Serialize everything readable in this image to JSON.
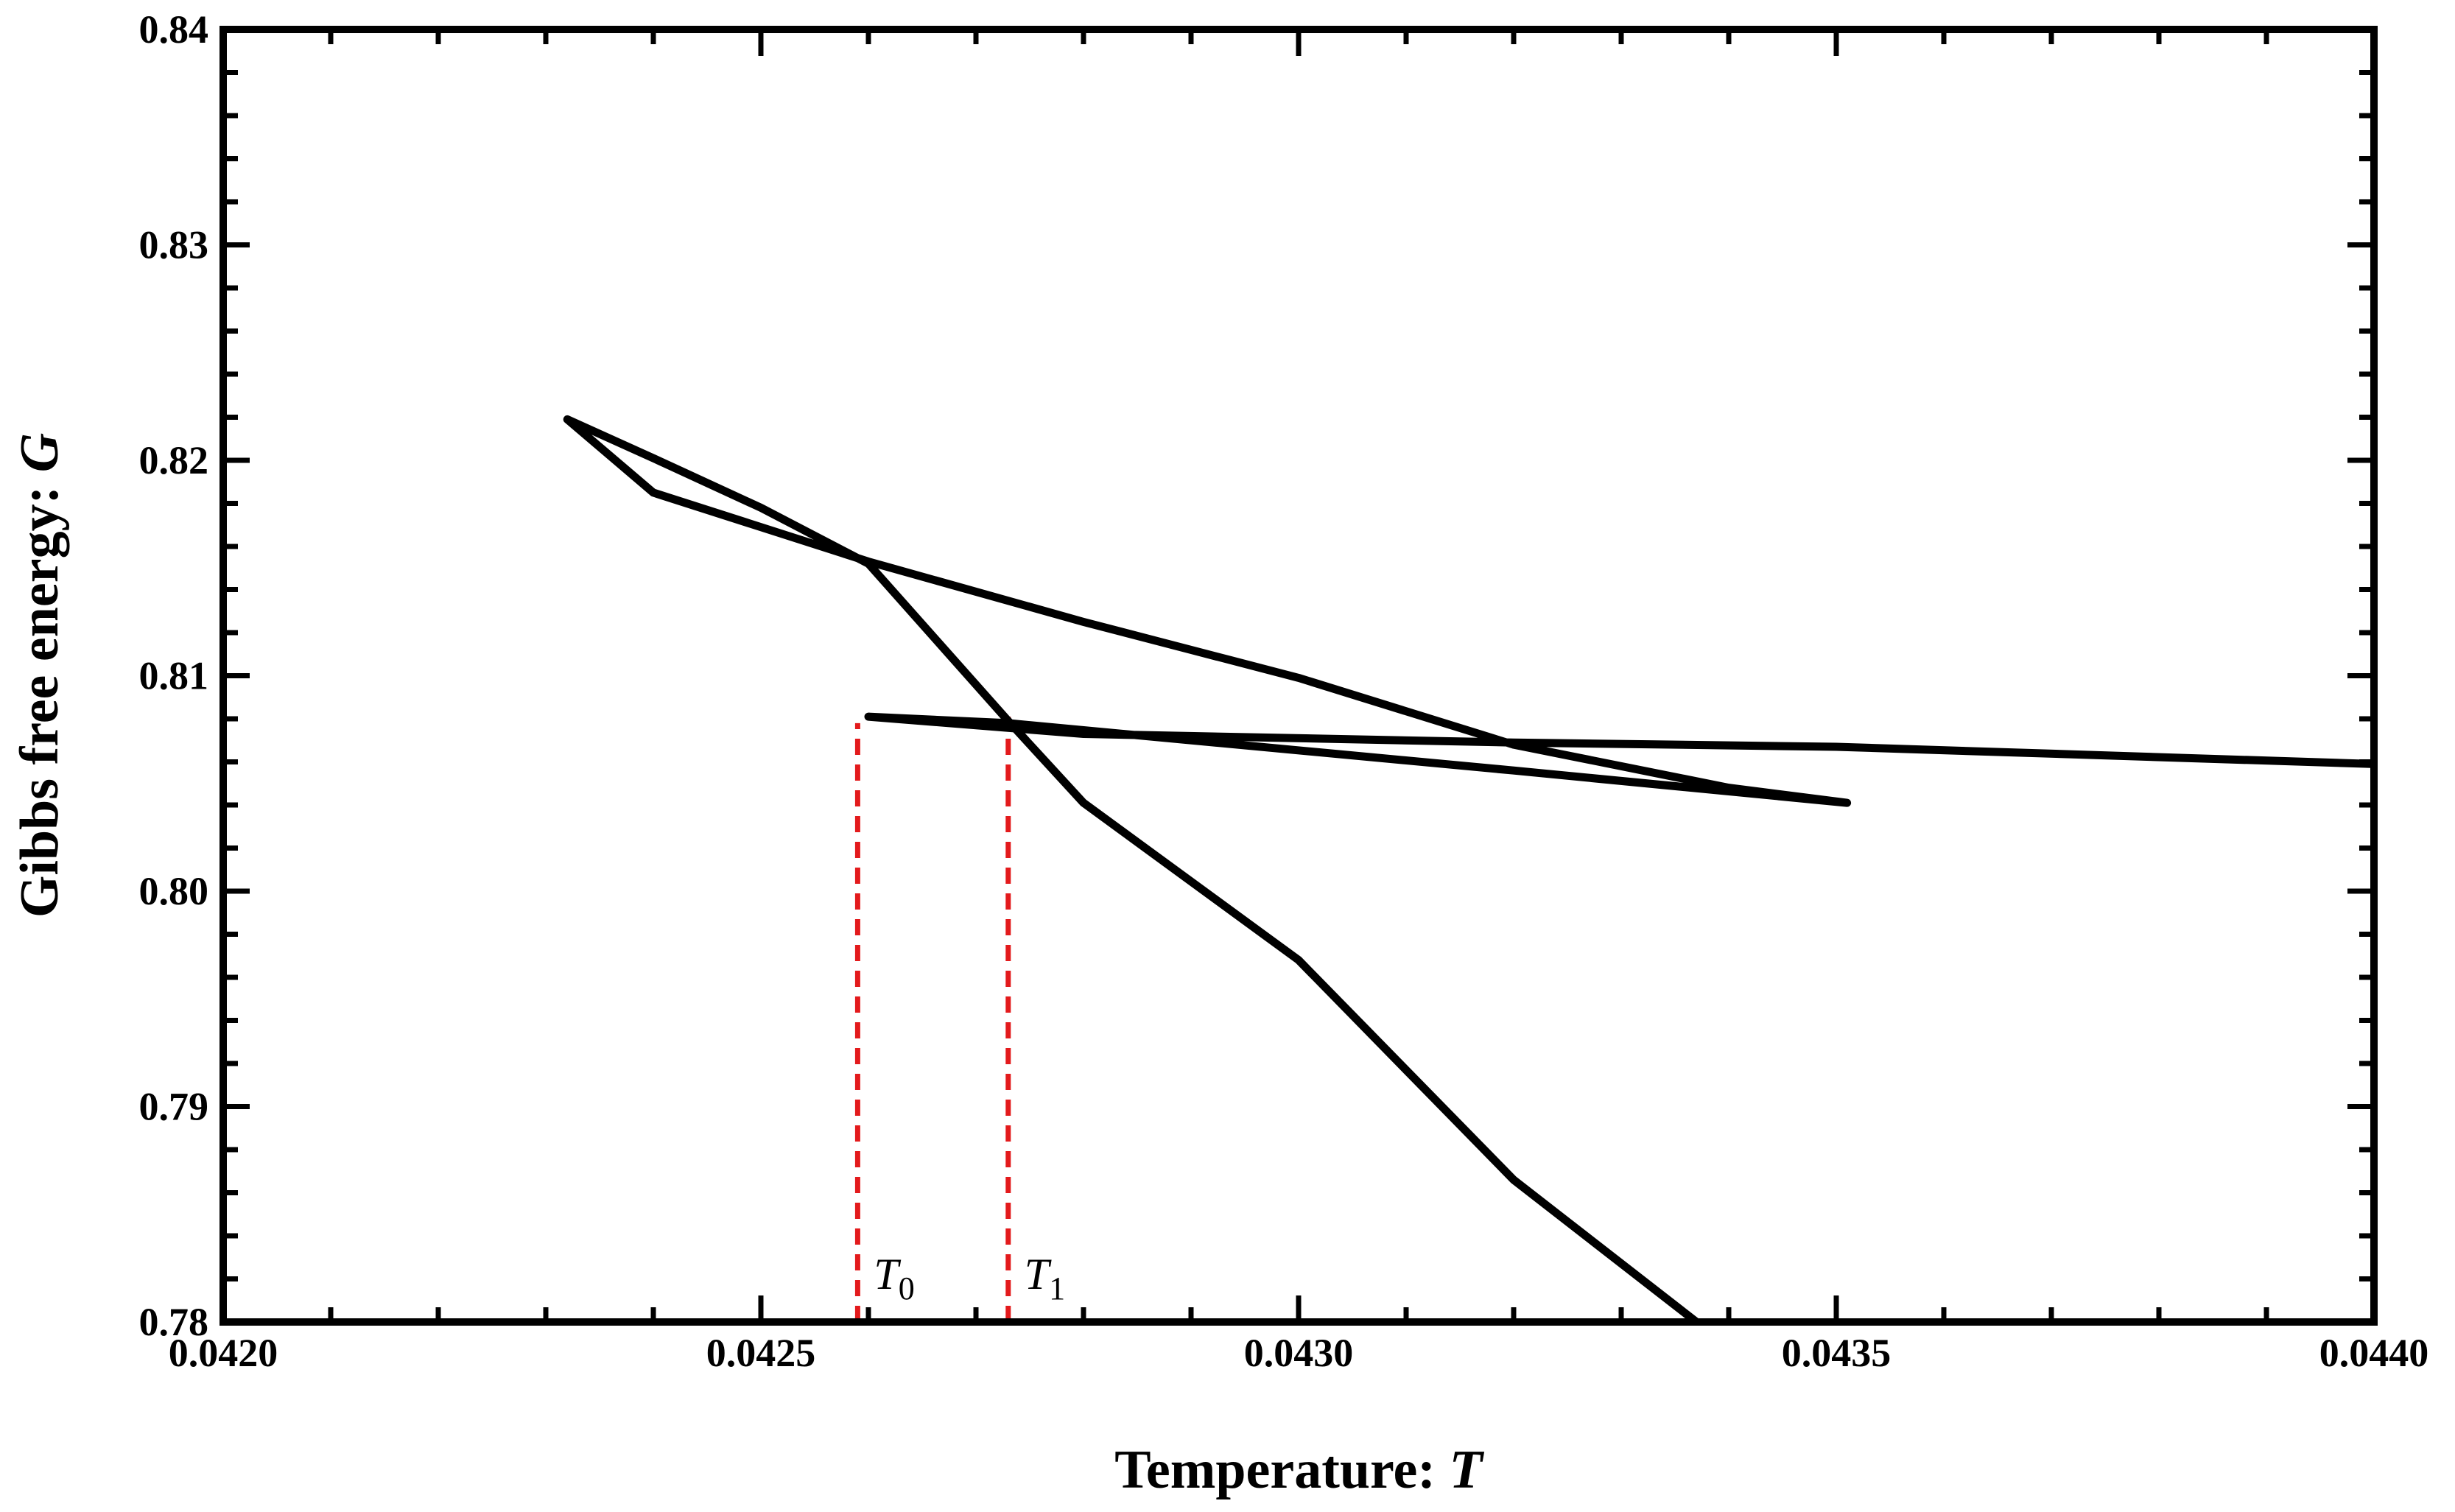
{
  "chart_data": {
    "type": "line",
    "xlabel_text": "Temperature: ",
    "xlabel_var": "T",
    "ylabel_text": "Gibbs free energy: ",
    "ylabel_var": "G",
    "xlim": [
      0.042,
      0.044
    ],
    "ylim": [
      0.78,
      0.84
    ],
    "x_ticks": [
      0.042,
      0.0425,
      0.043,
      0.0435,
      0.044
    ],
    "x_tick_labels": [
      "0.0420",
      "0.0425",
      "0.0430",
      "0.0435",
      "0.0440"
    ],
    "y_ticks": [
      0.78,
      0.79,
      0.8,
      0.81,
      0.82,
      0.83,
      0.84
    ],
    "y_tick_labels": [
      "0.78",
      "0.79",
      "0.80",
      "0.81",
      "0.82",
      "0.83",
      "0.84"
    ],
    "grid": false,
    "series": [
      {
        "color": "#000000",
        "points": [
          [
            0.04441,
            0.805
          ],
          [
            0.044,
            0.8059
          ],
          [
            0.0435,
            0.8067
          ],
          [
            0.0432,
            0.8069
          ],
          [
            0.0428,
            0.8073
          ],
          [
            0.0426,
            0.8081
          ],
          [
            0.04273,
            0.8078
          ],
          [
            0.0432,
            0.8056
          ],
          [
            0.04351,
            0.8041
          ],
          [
            0.0434,
            0.8048
          ],
          [
            0.0432,
            0.8068
          ],
          [
            0.043,
            0.8099
          ],
          [
            0.0428,
            0.8125
          ],
          [
            0.0426,
            0.8153
          ],
          [
            0.0424,
            0.8185
          ],
          [
            0.04232,
            0.8219
          ],
          [
            0.0424,
            0.8201
          ],
          [
            0.0425,
            0.8178
          ],
          [
            0.0426,
            0.8152
          ],
          [
            0.04273,
            0.8079
          ],
          [
            0.0428,
            0.8041
          ],
          [
            0.043,
            0.7968
          ],
          [
            0.0432,
            0.7866
          ],
          [
            0.04337,
            0.78
          ]
        ]
      }
    ],
    "vlines": [
      {
        "x": 0.04259,
        "y_top": 0.8078,
        "label_main": "T",
        "label_sub": "0",
        "color": "#e31a1c",
        "style": "dashed"
      },
      {
        "x": 0.04273,
        "y_top": 0.8081,
        "label_main": "T",
        "label_sub": "1",
        "color": "#e31a1c",
        "style": "dashed"
      }
    ]
  }
}
